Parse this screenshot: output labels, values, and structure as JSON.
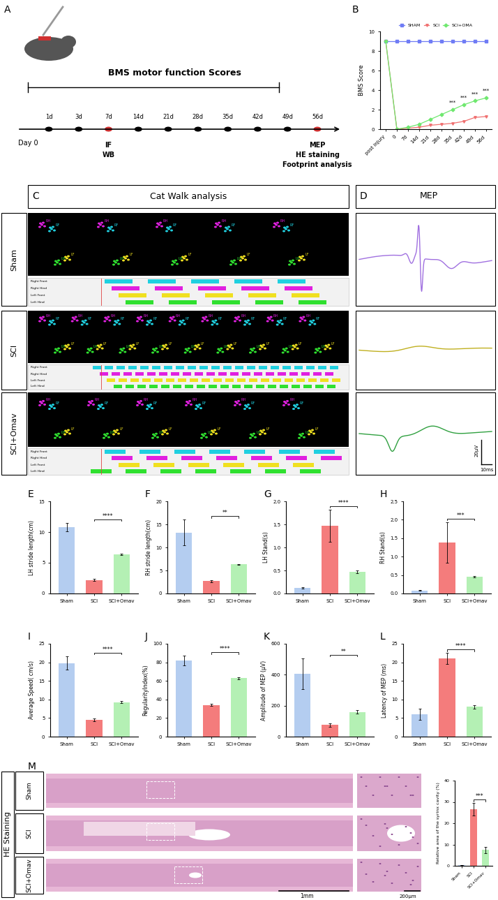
{
  "panel_letters": [
    "A",
    "B",
    "C",
    "D",
    "E",
    "F",
    "G",
    "H",
    "I",
    "J",
    "K",
    "L",
    "M"
  ],
  "timeline": {
    "title": "BMS motor function Scores",
    "start": "Day 0",
    "days": [
      "1d",
      "3d",
      "7d",
      "14d",
      "21d",
      "28d",
      "35d",
      "42d",
      "49d",
      "56d"
    ],
    "highlighted_days": [
      "7d",
      "56d"
    ],
    "assays_7d": [
      "IF",
      "WB"
    ],
    "assays_56d": [
      "MEP",
      "HE staining",
      "Footprint analysis"
    ]
  },
  "catwalk": {
    "title": "Cat Walk analysis",
    "groups": [
      "Sham",
      "SCI",
      "SCI+Omav"
    ],
    "paw_labels": [
      "RH",
      "RF",
      "LF",
      "LH"
    ],
    "lanes": [
      "Right Front",
      "Right Hind",
      "Left Front",
      "Left Hind"
    ]
  },
  "mep": {
    "title": "MEP",
    "scale_y": "20μV",
    "scale_x": "10ms"
  },
  "he": {
    "title": "HE Staining",
    "groups": [
      "Sham",
      "SCI",
      "SCI+Omav"
    ],
    "scale_bars": [
      "1mm",
      "200μm"
    ]
  },
  "chart_data": [
    {
      "type": "line",
      "panel": "B",
      "ylabel": "BMS Score",
      "categories": [
        "post injury",
        "0",
        "7d",
        "14d",
        "21d",
        "28d",
        "35d",
        "42d",
        "49d",
        "56d"
      ],
      "series": [
        {
          "name": "SHAM",
          "color": "#6f7cf5",
          "marker": "square",
          "values": [
            9,
            9,
            9,
            9,
            9,
            9,
            9,
            9,
            9,
            9
          ]
        },
        {
          "name": "SCI",
          "color": "#f07070",
          "marker": "triangle_down",
          "values": [
            9,
            0,
            0.1,
            0.2,
            0.4,
            0.5,
            0.6,
            0.8,
            1.2,
            1.3
          ]
        },
        {
          "name": "SCI+OMA",
          "color": "#6fe86f",
          "marker": "diamond",
          "values": [
            9,
            0,
            0.2,
            0.5,
            1.0,
            1.5,
            2.0,
            2.5,
            2.9,
            3.2
          ]
        }
      ],
      "annotations": [
        {
          "x": "35d",
          "text": "***"
        },
        {
          "x": "42d",
          "text": "***"
        },
        {
          "x": "49d",
          "text": "***"
        },
        {
          "x": "56d",
          "text": "***"
        }
      ],
      "ylim": [
        0,
        10
      ],
      "yticks": [
        0,
        2,
        4,
        6,
        8,
        10
      ],
      "legend": "lower center"
    },
    {
      "type": "bar",
      "panel": "E",
      "ylabel": "LH stride length(cm)",
      "categories": [
        "Sham",
        "SCI",
        "SCI+Omav"
      ],
      "values": [
        10.8,
        2.2,
        6.4
      ],
      "errors": [
        0.7,
        0.2,
        0.1
      ],
      "colors": [
        "#b4cdf0",
        "#f47c7c",
        "#b4f0b4"
      ],
      "ylim": [
        0,
        15
      ],
      "yticks": [
        0,
        5,
        10,
        15
      ],
      "annotation": "****",
      "comparison": [
        "SCI",
        "SCI+Omav"
      ]
    },
    {
      "type": "bar",
      "panel": "F",
      "ylabel": "RH stride length(cm)",
      "categories": [
        "Sham",
        "SCI",
        "SCI+Omav"
      ],
      "values": [
        13.2,
        2.7,
        6.3
      ],
      "errors": [
        2.8,
        0.2,
        0.1
      ],
      "colors": [
        "#b4cdf0",
        "#f47c7c",
        "#b4f0b4"
      ],
      "ylim": [
        0,
        20
      ],
      "yticks": [
        0,
        5,
        10,
        15,
        20
      ],
      "annotation": "**",
      "comparison": [
        "SCI",
        "SCI+Omav"
      ]
    },
    {
      "type": "bar",
      "panel": "G",
      "ylabel": "LH Stand(s)",
      "categories": [
        "Sham",
        "SCI",
        "SCI+Omav"
      ],
      "values": [
        0.12,
        1.47,
        0.47
      ],
      "errors": [
        0.01,
        0.35,
        0.03
      ],
      "colors": [
        "#b4cdf0",
        "#f47c7c",
        "#b4f0b4"
      ],
      "ylim": [
        0,
        2
      ],
      "yticks": [
        {
          "value": 0,
          "label": "0.0"
        },
        0.5,
        {
          "value": 1,
          "label": "1.0"
        },
        1.5,
        {
          "value": 2,
          "label": "2.0"
        }
      ],
      "annotation": "****",
      "comparison": [
        "SCI",
        "SCI+Omav"
      ]
    },
    {
      "type": "bar",
      "panel": "H",
      "ylabel": "RH Stand(s)",
      "categories": [
        "Sham",
        "SCI",
        "SCI+Omav"
      ],
      "values": [
        0.08,
        1.38,
        0.45
      ],
      "errors": [
        0.01,
        0.55,
        0.02
      ],
      "colors": [
        "#b4cdf0",
        "#f47c7c",
        "#b4f0b4"
      ],
      "ylim": [
        0,
        2.5
      ],
      "yticks": [
        {
          "value": 0,
          "label": "0.0"
        },
        0.5,
        {
          "value": 1,
          "label": "1.0"
        },
        1.5,
        {
          "value": 2,
          "label": "2.0"
        },
        2.5
      ],
      "annotation": "***",
      "comparison": [
        "SCI",
        "SCI+Omav"
      ]
    },
    {
      "type": "bar",
      "panel": "I",
      "ylabel": "Average Speed( cm/s)",
      "categories": [
        "Sham",
        "SCI",
        "SCI+Omav"
      ],
      "values": [
        19.8,
        4.5,
        9.3
      ],
      "errors": [
        1.8,
        0.3,
        0.3
      ],
      "colors": [
        "#b4cdf0",
        "#f47c7c",
        "#b4f0b4"
      ],
      "ylim": [
        0,
        25
      ],
      "yticks": [
        0,
        5,
        10,
        15,
        20,
        25
      ],
      "annotation": "****",
      "comparison": [
        "SCI",
        "SCI+Omav"
      ]
    },
    {
      "type": "bar",
      "panel": "J",
      "ylabel": "RegularityIndex(%)",
      "categories": [
        "Sham",
        "SCI",
        "SCI+Omav"
      ],
      "values": [
        82,
        34,
        63
      ],
      "errors": [
        5,
        1,
        1
      ],
      "colors": [
        "#b4cdf0",
        "#f47c7c",
        "#b4f0b4"
      ],
      "ylim": [
        0,
        100
      ],
      "yticks": [
        0,
        20,
        40,
        60,
        80,
        100
      ],
      "annotation": "****",
      "comparison": [
        "SCI",
        "SCI+Omav"
      ]
    },
    {
      "type": "bar",
      "panel": "K",
      "ylabel": "Amplitude of MEP (μV)",
      "categories": [
        "Sham",
        "SCI",
        "SCI+Omav"
      ],
      "values": [
        405,
        75,
        160
      ],
      "errors": [
        100,
        10,
        10
      ],
      "colors": [
        "#b4cdf0",
        "#f47c7c",
        "#b4f0b4"
      ],
      "ylim": [
        0,
        600
      ],
      "yticks": [
        0,
        200,
        400,
        600
      ],
      "annotation": "**",
      "comparison": [
        "SCI",
        "SCI+Omav"
      ]
    },
    {
      "type": "bar",
      "panel": "L",
      "ylabel": "Latency of MEP (ms)",
      "categories": [
        "Sham",
        "SCI",
        "SCI+Omav"
      ],
      "values": [
        6,
        21,
        8
      ],
      "errors": [
        1.5,
        1.5,
        0.5
      ],
      "colors": [
        "#b4cdf0",
        "#f47c7c",
        "#b4f0b4"
      ],
      "ylim": [
        0,
        25
      ],
      "yticks": [
        0,
        5,
        10,
        15,
        20,
        25
      ],
      "annotation": "****",
      "comparison": [
        "SCI",
        "SCI+Omav"
      ]
    },
    {
      "type": "bar",
      "panel": "M",
      "ylabel": "Relative area of the syrinx cavity (%)",
      "categories": [
        "Sham",
        "SCI",
        "SCI+Omav"
      ],
      "values": [
        0.3,
        26.5,
        7.5
      ],
      "errors": [
        0.1,
        3,
        1.5
      ],
      "colors": [
        "#b4cdf0",
        "#f47c7c",
        "#b4f0b4"
      ],
      "ylim": [
        0,
        40
      ],
      "yticks": [
        0,
        10,
        20,
        30,
        40
      ],
      "annotation": "***",
      "comparison": [
        "SCI",
        "SCI+Omav"
      ]
    }
  ]
}
